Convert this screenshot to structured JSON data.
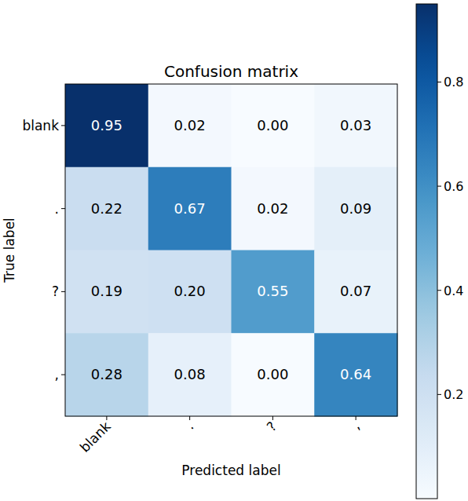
{
  "chart_data": {
    "type": "heatmap",
    "title": "Confusion matrix",
    "x_label": "Predicted label",
    "y_label": "True label",
    "categories": [
      "blank",
      ".",
      "?",
      ","
    ],
    "y_categories": [
      "blank",
      ".",
      "?",
      ","
    ],
    "values": [
      [
        0.95,
        0.02,
        0.0,
        0.03
      ],
      [
        0.22,
        0.67,
        0.02,
        0.09
      ],
      [
        0.19,
        0.2,
        0.55,
        0.07
      ],
      [
        0.28,
        0.08,
        0.0,
        0.64
      ]
    ],
    "value_labels": [
      [
        "0.95",
        "0.02",
        "0.00",
        "0.03"
      ],
      [
        "0.22",
        "0.67",
        "0.02",
        "0.09"
      ],
      [
        "0.19",
        "0.20",
        "0.55",
        "0.07"
      ],
      [
        "0.28",
        "0.08",
        "0.00",
        "0.64"
      ]
    ],
    "data_labels": true,
    "colorbar_range": [
      0,
      0.95
    ],
    "colorbar_ticks": [
      0.2,
      0.4,
      0.6,
      0.8
    ]
  }
}
